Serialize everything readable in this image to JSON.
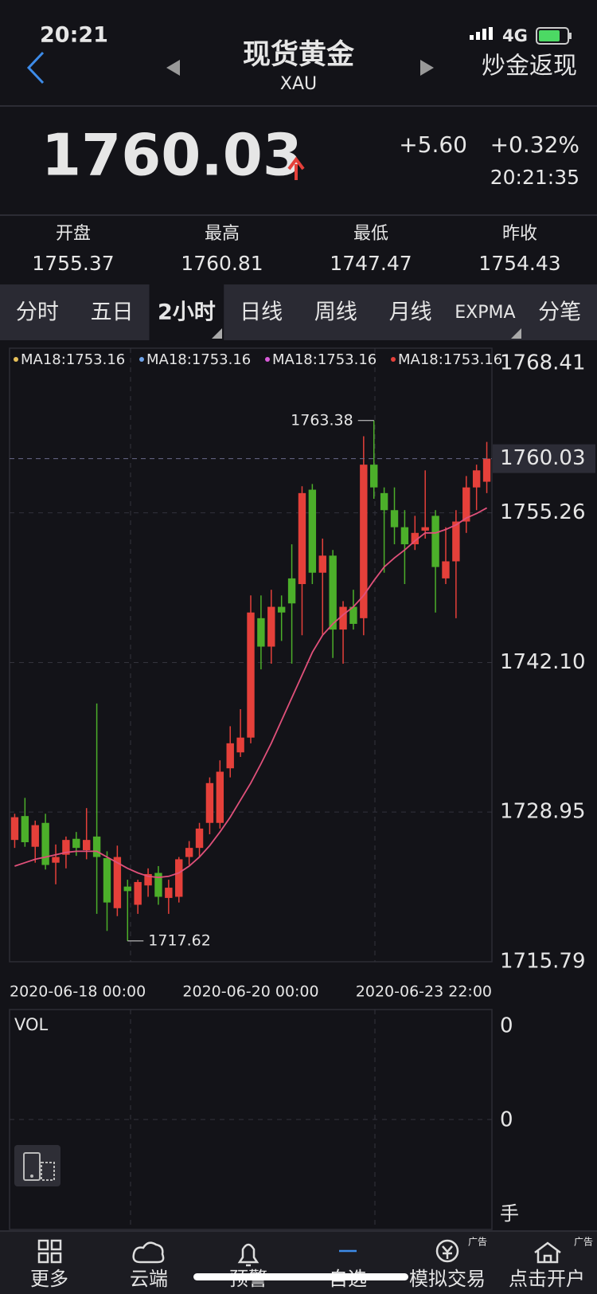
{
  "status": {
    "time": "20:21",
    "network": "4G"
  },
  "header": {
    "title": "现货黄金",
    "subtitle": "XAU",
    "action": "炒金返现"
  },
  "quote": {
    "price": "1760.03",
    "change": "+5.60",
    "change_pct": "+0.32%",
    "time": "20:21:35"
  },
  "stats": [
    {
      "label": "开盘",
      "value": "1755.37"
    },
    {
      "label": "最高",
      "value": "1760.81"
    },
    {
      "label": "最低",
      "value": "1747.47"
    },
    {
      "label": "昨收",
      "value": "1754.43"
    }
  ],
  "tabs": [
    "分时",
    "五日",
    "2小时",
    "日线",
    "周线",
    "月线",
    "EXPMA",
    "分笔"
  ],
  "active_tab": 2,
  "chart_data": {
    "type": "candlestick",
    "up_color": "#e5403a",
    "down_color": "#4caf2a",
    "ma_legend": [
      {
        "label": "MA18:1753.16",
        "color": "#e8c15a"
      },
      {
        "label": "MA18:1753.16",
        "color": "#6fa3e8"
      },
      {
        "label": "MA18:1753.16",
        "color": "#d95bd9"
      },
      {
        "label": "MA18:1753.16",
        "color": "#e5403a"
      }
    ],
    "ylim": [
      1715.79,
      1768.41
    ],
    "yticks": [
      1768.41,
      1755.26,
      {
        "value": 1742.1,
        "label": "1742.10"
      },
      1728.95,
      1715.79
    ],
    "last_price": {
      "value": 1760.03,
      "label": "1760.03"
    },
    "high_label": "1763.38",
    "low_label": "1717.62",
    "categories": [
      "2020-06-18 00:00",
      null,
      null,
      null,
      null,
      null,
      null,
      null,
      null,
      null,
      null,
      null,
      null,
      null,
      null,
      null,
      null,
      null,
      null,
      null,
      null,
      null,
      null,
      "2020-06-20 00:00",
      null,
      null,
      null,
      null,
      null,
      null,
      null,
      null,
      null,
      null,
      null,
      null,
      null,
      null,
      null,
      null,
      null,
      null,
      null,
      null,
      null,
      null,
      "2020-06-23 22:00"
    ],
    "open": [
      1726.5,
      1728.6,
      1725.9,
      1728.0,
      1724.5,
      1725.2,
      1726.6,
      1725.6,
      1726.8,
      1724.9,
      1720.5,
      1722.4,
      1720.8,
      1722.5,
      1723.6,
      1721.4,
      1721.5,
      1725.0,
      1725.8,
      1728.0,
      1728.0,
      1732.8,
      1734.2,
      1735.5,
      1746.0,
      1743.5,
      1747.0,
      1749.5,
      1749.0,
      1757.3,
      1750.0,
      1751.5,
      1745.0,
      1747.0,
      1746.0,
      1759.5,
      1757.0,
      1755.5,
      1754.0,
      1752.5,
      1753.7,
      1755.0,
      1749.5,
      1751.0,
      1754.5,
      1757.5,
      1758.0
    ],
    "high": [
      1728.8,
      1730.2,
      1728.2,
      1728.8,
      1726.1,
      1726.8,
      1727.2,
      1729.3,
      1738.5,
      1725.5,
      1726.0,
      1723.0,
      1723.0,
      1724.0,
      1724.2,
      1723.0,
      1725.0,
      1726.4,
      1728.0,
      1732.0,
      1733.5,
      1736.5,
      1738.0,
      1748.0,
      1748.0,
      1748.5,
      1748.0,
      1752.5,
      1757.6,
      1757.8,
      1753.0,
      1752.0,
      1747.5,
      1748.5,
      1762.0,
      1763.38,
      1757.5,
      1757.5,
      1755.5,
      1755.0,
      1759.0,
      1755.5,
      1754.0,
      1755.5,
      1758.5,
      1759.5,
      1761.5
    ],
    "low": [
      1725.8,
      1725.9,
      1724.5,
      1723.9,
      1722.6,
      1724.0,
      1725.1,
      1724.8,
      1720.0,
      1718.5,
      1719.8,
      1717.62,
      1720.0,
      1721.5,
      1720.8,
      1720.0,
      1721.0,
      1724.3,
      1725.0,
      1727.0,
      1727.5,
      1732.0,
      1733.8,
      1735.0,
      1741.5,
      1742.0,
      1744.0,
      1742.0,
      1744.5,
      1749.0,
      1744.5,
      1742.5,
      1742.0,
      1745.0,
      1744.5,
      1756.5,
      1750.0,
      1752.5,
      1749.0,
      1752.0,
      1753.0,
      1746.5,
      1749.0,
      1746.0,
      1753.5,
      1755.5,
      1757.0
    ],
    "close": [
      1728.5,
      1726.3,
      1727.8,
      1724.3,
      1725.0,
      1726.5,
      1725.8,
      1726.5,
      1725.0,
      1721.0,
      1725.0,
      1722.0,
      1722.8,
      1723.5,
      1721.5,
      1722.3,
      1724.8,
      1725.8,
      1727.5,
      1731.5,
      1732.5,
      1735.0,
      1735.5,
      1746.5,
      1743.5,
      1747.0,
      1746.5,
      1747.3,
      1757.0,
      1750.0,
      1751.5,
      1745.0,
      1747.0,
      1745.5,
      1759.5,
      1757.5,
      1755.5,
      1754.0,
      1752.5,
      1753.5,
      1754.0,
      1750.5,
      1751.0,
      1754.5,
      1757.5,
      1759.0,
      1760.03
    ],
    "ma": {
      "color": "#e0507a",
      "values": [
        1724.2,
        1724.5,
        1724.8,
        1725.0,
        1725.2,
        1725.4,
        1725.5,
        1725.5,
        1725.5,
        1725.0,
        1724.5,
        1724.0,
        1723.6,
        1723.3,
        1723.2,
        1723.3,
        1723.6,
        1724.2,
        1725.0,
        1726.0,
        1727.2,
        1728.5,
        1730.0,
        1731.5,
        1733.2,
        1735.0,
        1737.0,
        1739.0,
        1741.0,
        1743.0,
        1744.5,
        1745.5,
        1746.3,
        1747.0,
        1748.0,
        1749.3,
        1750.5,
        1751.3,
        1752.0,
        1752.8,
        1753.5,
        1753.5,
        1753.8,
        1754.2,
        1754.8,
        1755.2,
        1755.7
      ]
    }
  },
  "volume": {
    "title": "VOL",
    "labels": [
      "0",
      "0",
      "手"
    ]
  },
  "nav": {
    "items": [
      "更多",
      "云端",
      "预警",
      "自选",
      "模拟交易",
      "点击开户"
    ],
    "active": 3,
    "ad": [
      "广告",
      "广告"
    ]
  }
}
